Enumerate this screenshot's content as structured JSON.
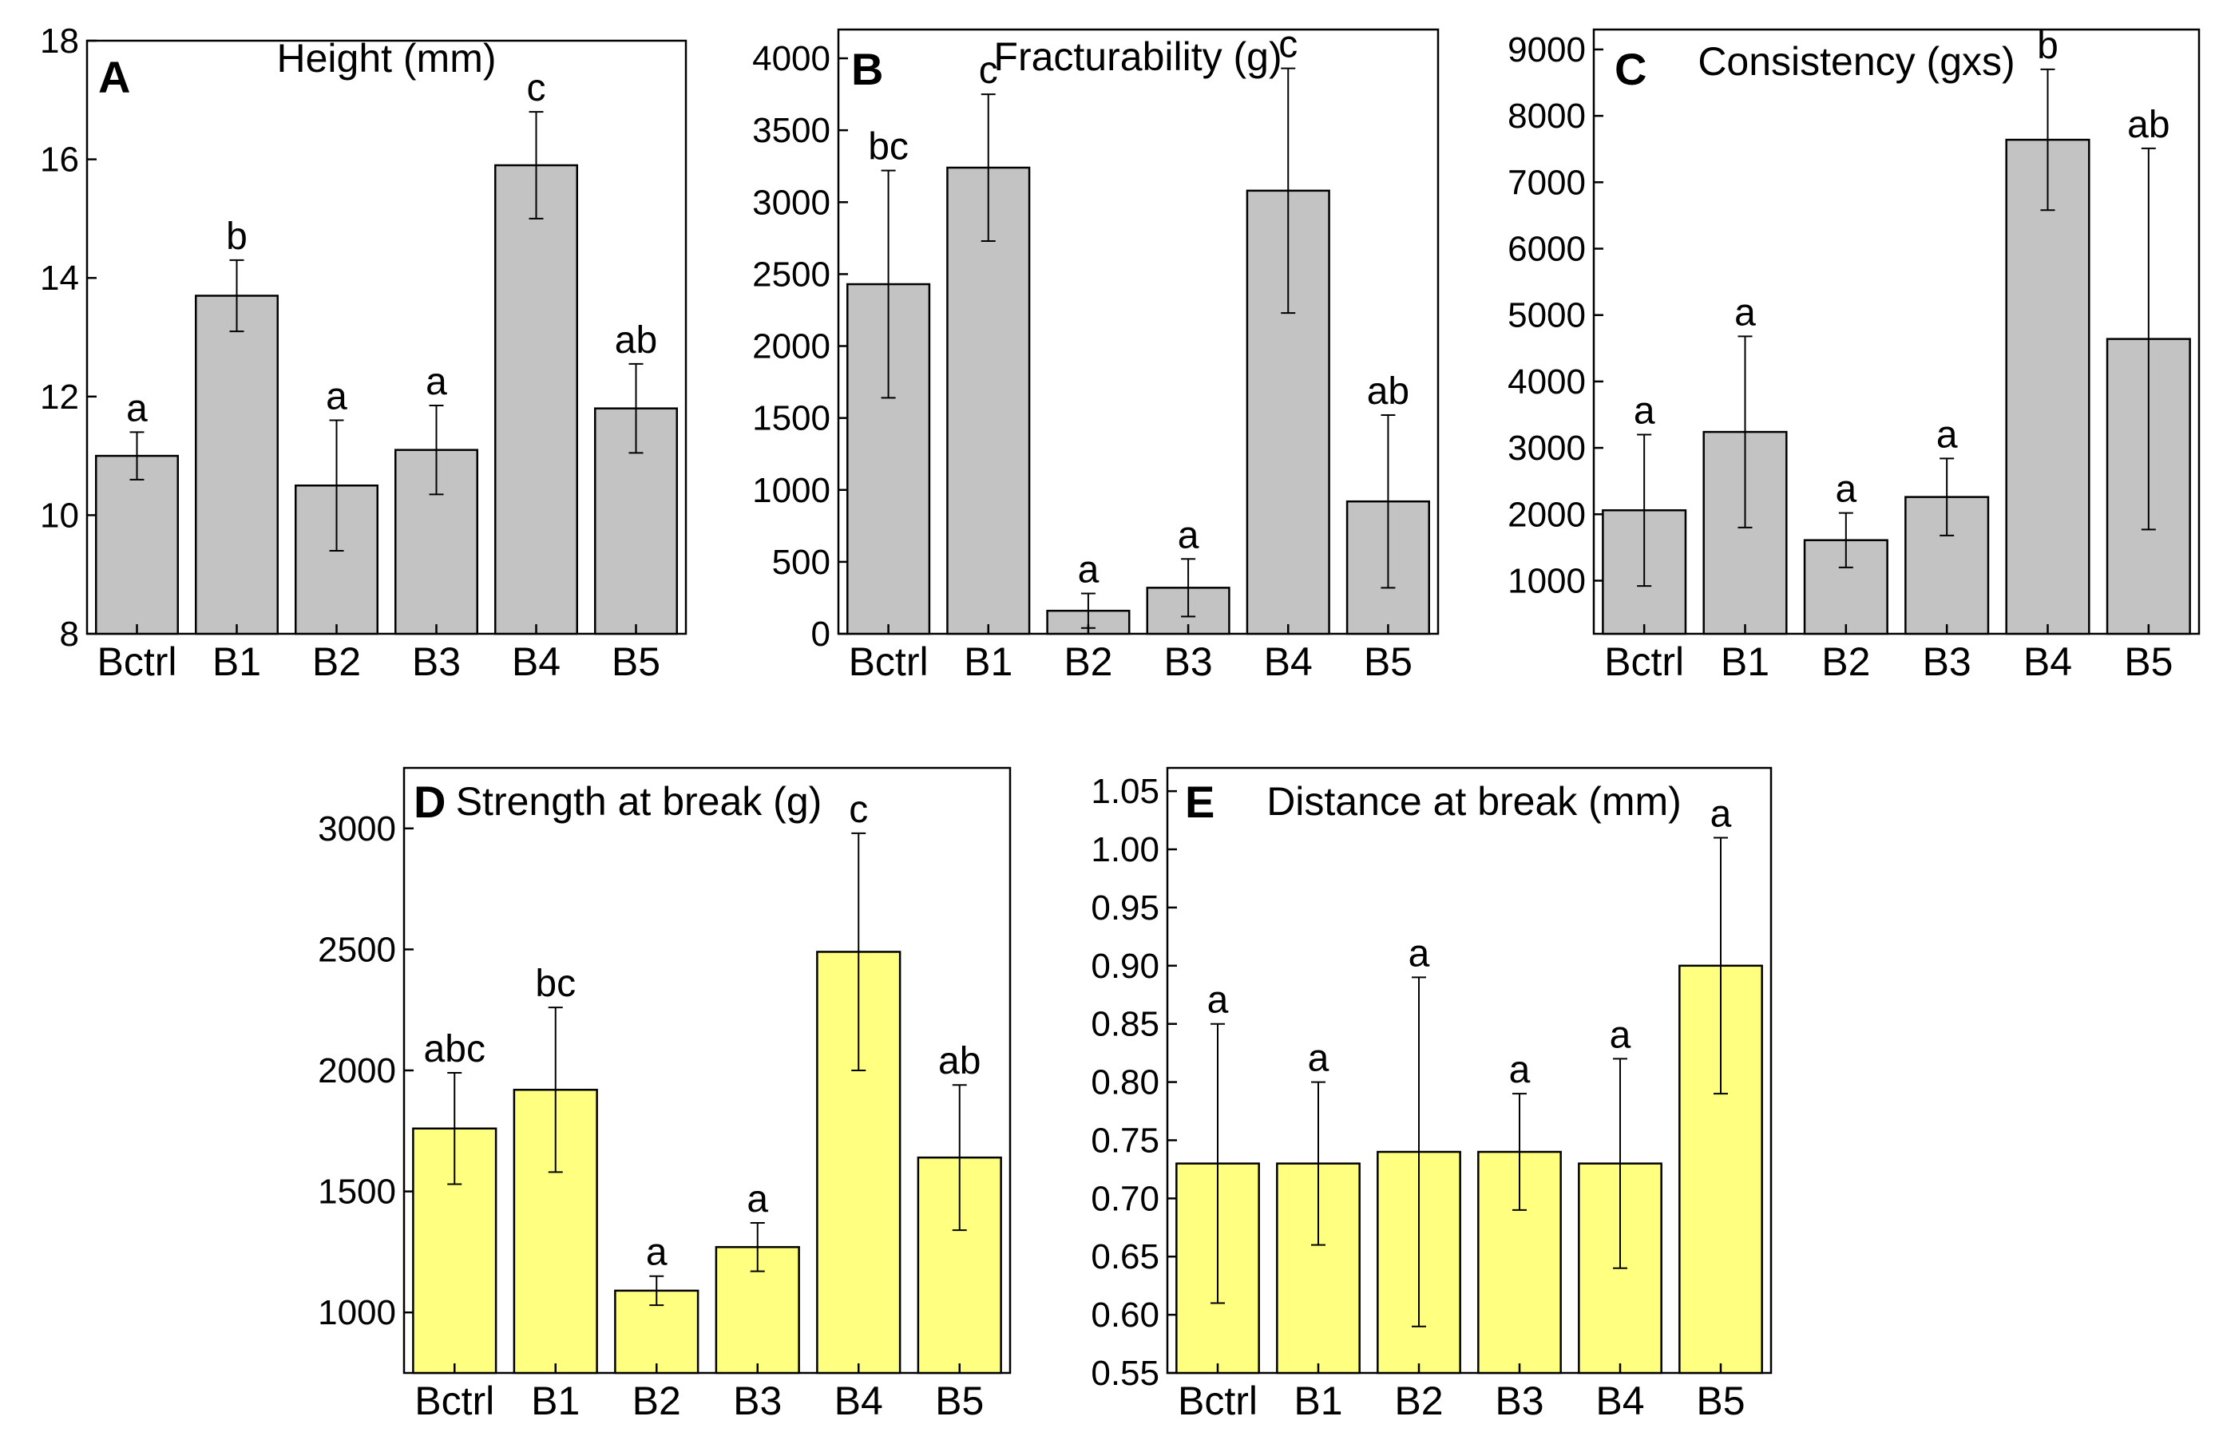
{
  "chart_data": [
    {
      "type": "bar",
      "panel": "A",
      "title": "Height (mm)",
      "categories": [
        "Bctrl",
        "B1",
        "B2",
        "B3",
        "B4",
        "B5"
      ],
      "values": [
        11.0,
        13.7,
        10.5,
        11.1,
        15.9,
        11.8
      ],
      "errors": [
        0.4,
        0.6,
        1.1,
        0.75,
        0.9,
        0.75
      ],
      "letters": [
        "a",
        "b",
        "a",
        "a",
        "c",
        "ab"
      ],
      "ylim": [
        8,
        18
      ],
      "yticks": [
        8,
        10,
        12,
        14,
        16,
        18
      ],
      "color": "#c3c3c3"
    },
    {
      "type": "bar",
      "panel": "B",
      "title": "Fracturability (g)",
      "categories": [
        "Bctrl",
        "B1",
        "B2",
        "B3",
        "B4",
        "B5"
      ],
      "values": [
        2430,
        3240,
        160,
        320,
        3080,
        920
      ],
      "errors": [
        790,
        510,
        120,
        200,
        850,
        600
      ],
      "letters": [
        "bc",
        "c",
        "a",
        "a",
        "c",
        "ab"
      ],
      "ylim": [
        0,
        4200
      ],
      "yticks": [
        0,
        500,
        1000,
        1500,
        2000,
        2500,
        3000,
        3500,
        4000
      ],
      "color": "#c3c3c3"
    },
    {
      "type": "bar",
      "panel": "C",
      "title": "Consistency (gxs)",
      "categories": [
        "Bctrl",
        "B1",
        "B2",
        "B3",
        "B4",
        "B5"
      ],
      "values": [
        2060,
        3240,
        1610,
        2260,
        7640,
        4640
      ],
      "errors": [
        1140,
        1440,
        410,
        580,
        1060,
        2870
      ],
      "letters": [
        "a",
        "a",
        "a",
        "a",
        "b",
        "ab"
      ],
      "ylim": [
        200,
        9300
      ],
      "yticks": [
        1000,
        2000,
        3000,
        4000,
        5000,
        6000,
        7000,
        8000,
        9000
      ],
      "color": "#c3c3c3"
    },
    {
      "type": "bar",
      "panel": "D",
      "title": "Strength at break (g)",
      "categories": [
        "Bctrl",
        "B1",
        "B2",
        "B3",
        "B4",
        "B5"
      ],
      "values": [
        1760,
        1920,
        1090,
        1270,
        2490,
        1640
      ],
      "errors": [
        230,
        340,
        60,
        100,
        490,
        300
      ],
      "letters": [
        "abc",
        "bc",
        "a",
        "a",
        "c",
        "ab"
      ],
      "ylim": [
        750,
        3250
      ],
      "yticks": [
        1000,
        1500,
        2000,
        2500,
        3000
      ],
      "color": "#ffff80"
    },
    {
      "type": "bar",
      "panel": "E",
      "title": "Distance at break (mm)",
      "categories": [
        "Bctrl",
        "B1",
        "B2",
        "B3",
        "B4",
        "B5"
      ],
      "values": [
        0.73,
        0.73,
        0.74,
        0.74,
        0.73,
        0.9
      ],
      "errors": [
        0.12,
        0.07,
        0.15,
        0.05,
        0.09,
        0.11
      ],
      "letters": [
        "a",
        "a",
        "a",
        "a",
        "a",
        "a"
      ],
      "ylim": [
        0.55,
        1.07
      ],
      "yticks": [
        "0.55",
        "0.60",
        "0.65",
        "0.70",
        "0.75",
        "0.80",
        "0.85",
        "0.90",
        "0.95",
        "1.00",
        "1.05"
      ],
      "color": "#ffff80"
    }
  ]
}
